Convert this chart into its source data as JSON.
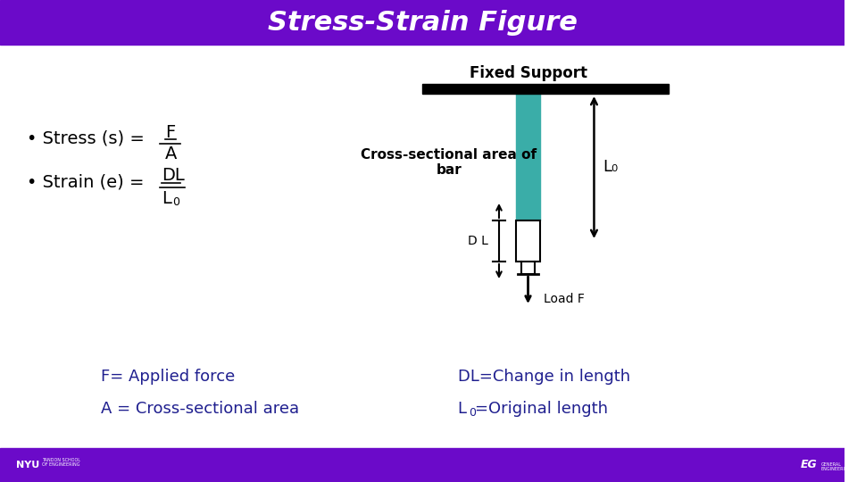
{
  "title": "Stress-Strain Figure",
  "title_bg": "#6B0AC9",
  "title_color": "#FFFFFF",
  "body_bg": "#FFFFFF",
  "footer_bg": "#6B0AC9",
  "teal_color": "#3AADA8",
  "black": "#000000",
  "text_color": "#000000",
  "blue_text": "#1F1F8F",
  "fixed_support_label": "Fixed Support",
  "cross_section_label": "Cross-sectional area of\nbar",
  "L0_label": "L₀",
  "DL_label": "D L",
  "load_label": "Load F",
  "bottom_left1": "F= Applied force",
  "bottom_left2": "A = Cross-sectional area",
  "bottom_right1": "DL=Change in length",
  "bottom_right2": "=Original length"
}
